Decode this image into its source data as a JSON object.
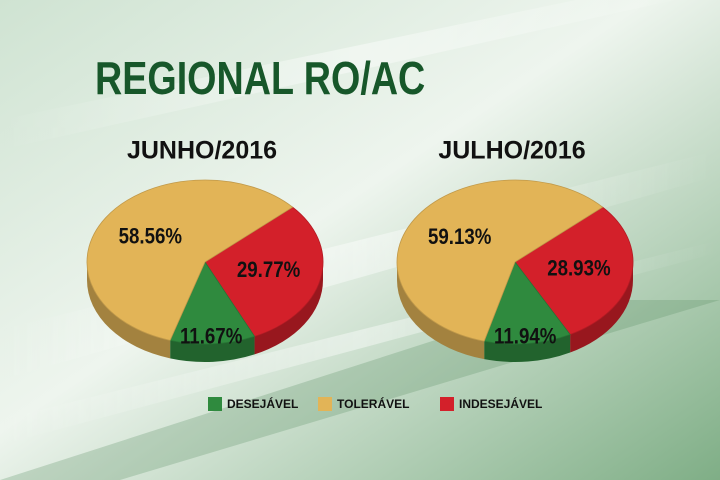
{
  "title": "REGIONAL RO/AC",
  "chart_data": [
    {
      "type": "pie",
      "title": "JUNHO/2016",
      "categories": [
        "DESEJÁVEL",
        "TOLERÁVEL",
        "INDESEJÁVEL"
      ],
      "values": [
        11.67,
        58.56,
        29.77
      ],
      "value_labels": [
        "11.67%",
        "58.56%",
        "29.77%"
      ],
      "colors": [
        "#2f8a3e",
        "#e2b457",
        "#d3202a"
      ]
    },
    {
      "type": "pie",
      "title": "JULHO/2016",
      "categories": [
        "DESEJÁVEL",
        "TOLERÁVEL",
        "INDESEJÁVEL"
      ],
      "values": [
        11.94,
        59.13,
        28.93
      ],
      "value_labels": [
        "11.94%",
        "59.13%",
        "28.93%"
      ],
      "colors": [
        "#2f8a3e",
        "#e2b457",
        "#d3202a"
      ]
    }
  ]
}
